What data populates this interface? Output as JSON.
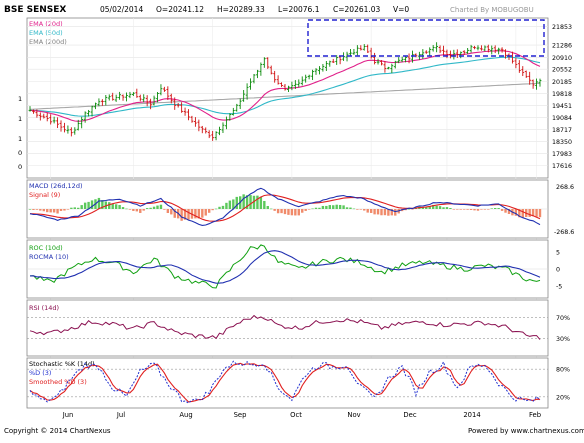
{
  "header": {
    "symbol": "BSE SENSEX",
    "date": "05/02/2014",
    "open": "O=20241.12",
    "high": "H=20289.33",
    "low": "L=20076.1",
    "close": "C=20261.03",
    "volume": "V=0",
    "charted_by": "Charted By MOBUGOBU"
  },
  "footer": {
    "copyright": "Copyright © 2014 ChartNexus",
    "powered_by": "Powered by www.chartnexus.com"
  },
  "colors": {
    "up": "#0a8a0a",
    "down": "#d01010",
    "ema20": "#e0208a",
    "ema50": "#30b8c8",
    "ema200": "#a8a8a8",
    "macd": "#2030b0",
    "signal": "#e02020",
    "roc": "#10a010",
    "rocma": "#2030b0",
    "rsi": "#8a1050",
    "stoch_k": "#2030d0",
    "stoch_d": "#e02020",
    "rect": "#2020d0"
  },
  "chart_data": [
    {
      "type": "candlestick",
      "panel": "price",
      "legend": [
        "EMA (20d)",
        "EMA (50d)",
        "EMA (200d)"
      ],
      "y_ticks": [
        21853,
        21286,
        20910,
        20552,
        20185,
        19818,
        19451,
        19084,
        18717,
        18350,
        17983,
        17616
      ],
      "ylim": [
        17300,
        22050
      ],
      "left_ticks": [
        "1",
        "1",
        "1",
        "0",
        "0"
      ],
      "x_labels": [
        "Jun",
        "Jul",
        "Aug",
        "Sep",
        "Oct",
        "Nov",
        "Dec",
        "2014",
        "Feb"
      ],
      "highlight": "dashed-rectangle",
      "keypoints": [
        [
          0,
          19300
        ],
        [
          6,
          19000
        ],
        [
          12,
          18600
        ],
        [
          16,
          19200
        ],
        [
          20,
          19600
        ],
        [
          25,
          19700
        ],
        [
          30,
          19800
        ],
        [
          35,
          19500
        ],
        [
          38,
          20000
        ],
        [
          42,
          19500
        ],
        [
          46,
          19100
        ],
        [
          50,
          18700
        ],
        [
          53,
          18500
        ],
        [
          56,
          18900
        ],
        [
          60,
          19400
        ],
        [
          63,
          20000
        ],
        [
          66,
          20500
        ],
        [
          68,
          20900
        ],
        [
          70,
          20400
        ],
        [
          74,
          19900
        ],
        [
          78,
          20100
        ],
        [
          82,
          20500
        ],
        [
          86,
          20700
        ],
        [
          90,
          20900
        ],
        [
          94,
          21100
        ],
        [
          97,
          21200
        ],
        [
          100,
          20800
        ],
        [
          103,
          20600
        ],
        [
          107,
          20800
        ],
        [
          110,
          20900
        ],
        [
          114,
          21100
        ],
        [
          118,
          21200
        ],
        [
          122,
          21000
        ],
        [
          126,
          21100
        ],
        [
          129,
          21250
        ],
        [
          133,
          21200
        ],
        [
          137,
          21150
        ],
        [
          140,
          20800
        ],
        [
          143,
          20400
        ],
        [
          146,
          20100
        ],
        [
          148,
          20261
        ]
      ]
    },
    {
      "type": "macd",
      "panel": "macd",
      "legend": [
        "MACD (26d,12d)",
        "Signal (9)"
      ],
      "y_ticks": [
        268.6,
        -268.6
      ],
      "keypoints": [
        [
          0,
          -50
        ],
        [
          8,
          -130
        ],
        [
          14,
          -80
        ],
        [
          20,
          90
        ],
        [
          26,
          120
        ],
        [
          32,
          40
        ],
        [
          38,
          120
        ],
        [
          44,
          -90
        ],
        [
          50,
          -200
        ],
        [
          56,
          -110
        ],
        [
          62,
          120
        ],
        [
          67,
          250
        ],
        [
          72,
          120
        ],
        [
          78,
          30
        ],
        [
          84,
          90
        ],
        [
          90,
          160
        ],
        [
          96,
          130
        ],
        [
          100,
          60
        ],
        [
          106,
          -30
        ],
        [
          112,
          20
        ],
        [
          118,
          80
        ],
        [
          124,
          60
        ],
        [
          130,
          40
        ],
        [
          136,
          60
        ],
        [
          142,
          -80
        ],
        [
          148,
          -180
        ]
      ]
    },
    {
      "type": "line",
      "panel": "roc",
      "legend": [
        "ROC (10d)",
        "ROCMA (10)"
      ],
      "y_ticks": [
        5,
        0,
        -5
      ],
      "keypoints": [
        [
          0,
          -2
        ],
        [
          6,
          -4
        ],
        [
          12,
          0
        ],
        [
          18,
          3
        ],
        [
          24,
          2
        ],
        [
          30,
          -1
        ],
        [
          36,
          3
        ],
        [
          42,
          -2
        ],
        [
          48,
          -4
        ],
        [
          54,
          -5
        ],
        [
          60,
          2
        ],
        [
          64,
          6
        ],
        [
          68,
          7
        ],
        [
          72,
          2
        ],
        [
          78,
          0
        ],
        [
          84,
          2
        ],
        [
          90,
          3
        ],
        [
          96,
          2
        ],
        [
          102,
          -1
        ],
        [
          108,
          1
        ],
        [
          114,
          2
        ],
        [
          120,
          1
        ],
        [
          126,
          0
        ],
        [
          132,
          1
        ],
        [
          138,
          0
        ],
        [
          144,
          -3
        ],
        [
          148,
          -4
        ]
      ]
    },
    {
      "type": "line",
      "panel": "rsi",
      "legend": [
        "RSI (14d)"
      ],
      "y_ticks": [
        "70%",
        "30%"
      ],
      "keypoints": [
        [
          0,
          45
        ],
        [
          6,
          40
        ],
        [
          12,
          50
        ],
        [
          18,
          62
        ],
        [
          24,
          58
        ],
        [
          30,
          48
        ],
        [
          36,
          60
        ],
        [
          42,
          42
        ],
        [
          48,
          35
        ],
        [
          54,
          32
        ],
        [
          60,
          58
        ],
        [
          64,
          70
        ],
        [
          68,
          72
        ],
        [
          72,
          55
        ],
        [
          78,
          50
        ],
        [
          84,
          62
        ],
        [
          90,
          66
        ],
        [
          96,
          62
        ],
        [
          102,
          50
        ],
        [
          108,
          58
        ],
        [
          114,
          62
        ],
        [
          120,
          56
        ],
        [
          126,
          58
        ],
        [
          132,
          60
        ],
        [
          138,
          52
        ],
        [
          144,
          35
        ],
        [
          148,
          32
        ]
      ]
    },
    {
      "type": "line",
      "panel": "stochastic",
      "legend": [
        "Stochastic %K (14d)",
        "%D (3)",
        "Smoothed %D (3)"
      ],
      "y_ticks": [
        "80%",
        "20%"
      ],
      "keypoints": [
        [
          0,
          30
        ],
        [
          4,
          10
        ],
        [
          8,
          20
        ],
        [
          12,
          60
        ],
        [
          16,
          90
        ],
        [
          20,
          85
        ],
        [
          24,
          40
        ],
        [
          28,
          20
        ],
        [
          32,
          75
        ],
        [
          36,
          90
        ],
        [
          40,
          50
        ],
        [
          44,
          15
        ],
        [
          48,
          10
        ],
        [
          52,
          30
        ],
        [
          56,
          80
        ],
        [
          60,
          95
        ],
        [
          64,
          90
        ],
        [
          68,
          95
        ],
        [
          72,
          40
        ],
        [
          76,
          15
        ],
        [
          80,
          70
        ],
        [
          84,
          90
        ],
        [
          88,
          85
        ],
        [
          92,
          90
        ],
        [
          96,
          40
        ],
        [
          100,
          15
        ],
        [
          104,
          60
        ],
        [
          108,
          85
        ],
        [
          112,
          30
        ],
        [
          116,
          75
        ],
        [
          120,
          90
        ],
        [
          124,
          40
        ],
        [
          128,
          85
        ],
        [
          132,
          90
        ],
        [
          136,
          50
        ],
        [
          140,
          20
        ],
        [
          144,
          10
        ],
        [
          148,
          15
        ]
      ]
    }
  ]
}
